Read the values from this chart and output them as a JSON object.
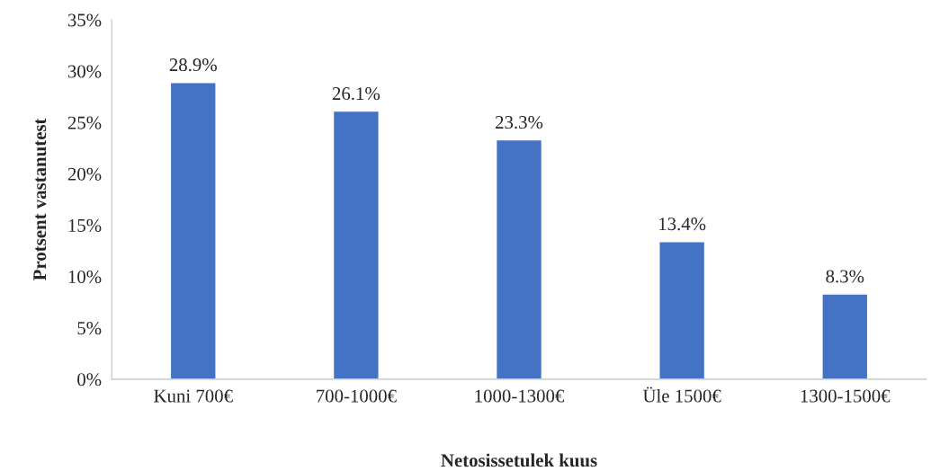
{
  "chart_data": {
    "type": "bar",
    "xlabel": "Netosissetulek kuus",
    "ylabel": "Protsent vastanutest",
    "categories": [
      "Kuni 700€",
      "700-1000€",
      "1000-1300€",
      "Üle 1500€",
      "1300-1500€"
    ],
    "values": [
      28.9,
      26.1,
      23.3,
      13.4,
      8.3
    ],
    "value_labels": [
      "28.9%",
      "26.1%",
      "23.3%",
      "13.4%",
      "8.3%"
    ],
    "color": "#4472c4",
    "ylim": [
      0,
      35
    ],
    "yticks": [
      {
        "value": 0,
        "label": "0%"
      },
      {
        "value": 5,
        "label": "5%"
      },
      {
        "value": 10,
        "label": "10%"
      },
      {
        "value": 15,
        "label": "15%"
      },
      {
        "value": 20,
        "label": "20%"
      },
      {
        "value": 25,
        "label": "25%"
      },
      {
        "value": 30,
        "label": "30%"
      },
      {
        "value": 35,
        "label": "35%"
      }
    ],
    "grid": false,
    "legend": false
  }
}
